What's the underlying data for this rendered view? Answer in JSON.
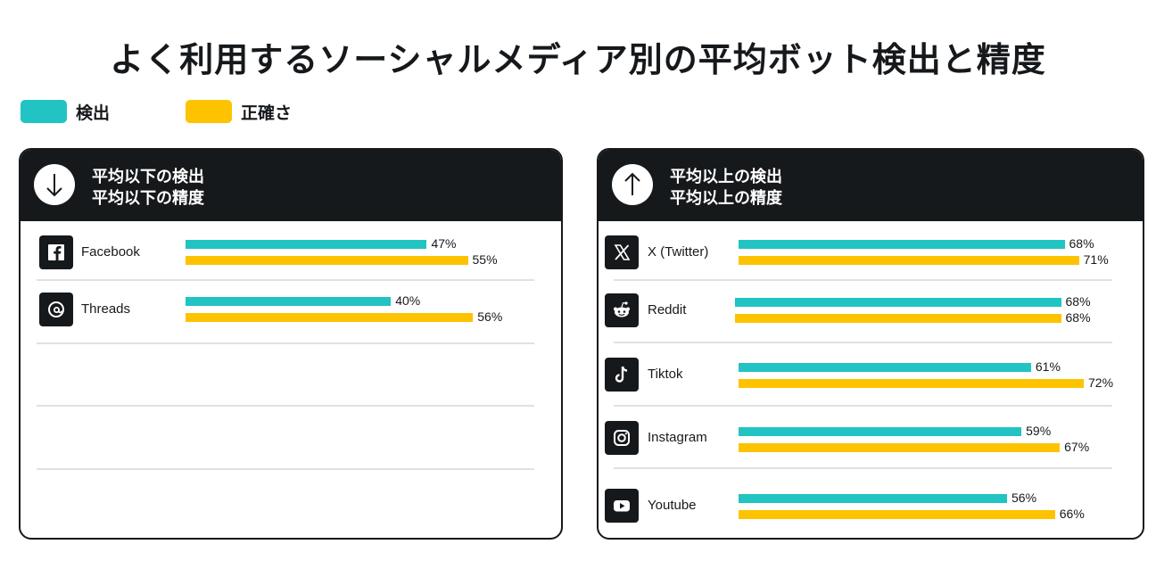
{
  "title": "よく利用するソーシャルメディア別の平均ボット検出と精度",
  "colors": {
    "detection": "#22c3c3",
    "accuracy": "#fec300",
    "dark": "#16191c"
  },
  "legend": [
    {
      "label": "検出",
      "color": "#22c3c3"
    },
    {
      "label": "正確さ",
      "color": "#fec300"
    }
  ],
  "chart_data": [
    {
      "type": "bar",
      "orientation": "horizontal",
      "header": [
        "平均以下の検出",
        "平均以下の精度"
      ],
      "header_icon": "arrow-down-icon",
      "categories": [
        "Facebook",
        "Threads"
      ],
      "icons": [
        "facebook-icon",
        "threads-icon"
      ],
      "series": [
        {
          "name": "検出",
          "values": [
            47,
            40
          ]
        },
        {
          "name": "正確さ",
          "values": [
            55,
            56
          ]
        }
      ],
      "labels": [
        [
          "47%",
          "40%"
        ],
        [
          "55%",
          "56%"
        ]
      ],
      "unit": "%"
    },
    {
      "type": "bar",
      "orientation": "horizontal",
      "header": [
        "平均以上の検出",
        "平均以上の精度"
      ],
      "header_icon": "arrow-up-icon",
      "categories": [
        "X (Twitter)",
        "Reddit",
        "Tiktok",
        "Instagram",
        "Youtube"
      ],
      "icons": [
        "x-twitter-icon",
        "reddit-icon",
        "tiktok-icon",
        "instagram-icon",
        "youtube-icon"
      ],
      "series": [
        {
          "name": "検出",
          "values": [
            68,
            68,
            61,
            59,
            56
          ]
        },
        {
          "name": "正確さ",
          "values": [
            71,
            68,
            72,
            67,
            66
          ]
        }
      ],
      "labels": [
        [
          "68%",
          "68%",
          "61%",
          "59%",
          "56%"
        ],
        [
          "71%",
          "68%",
          "72%",
          "67%",
          "66%"
        ]
      ],
      "unit": "%"
    }
  ]
}
